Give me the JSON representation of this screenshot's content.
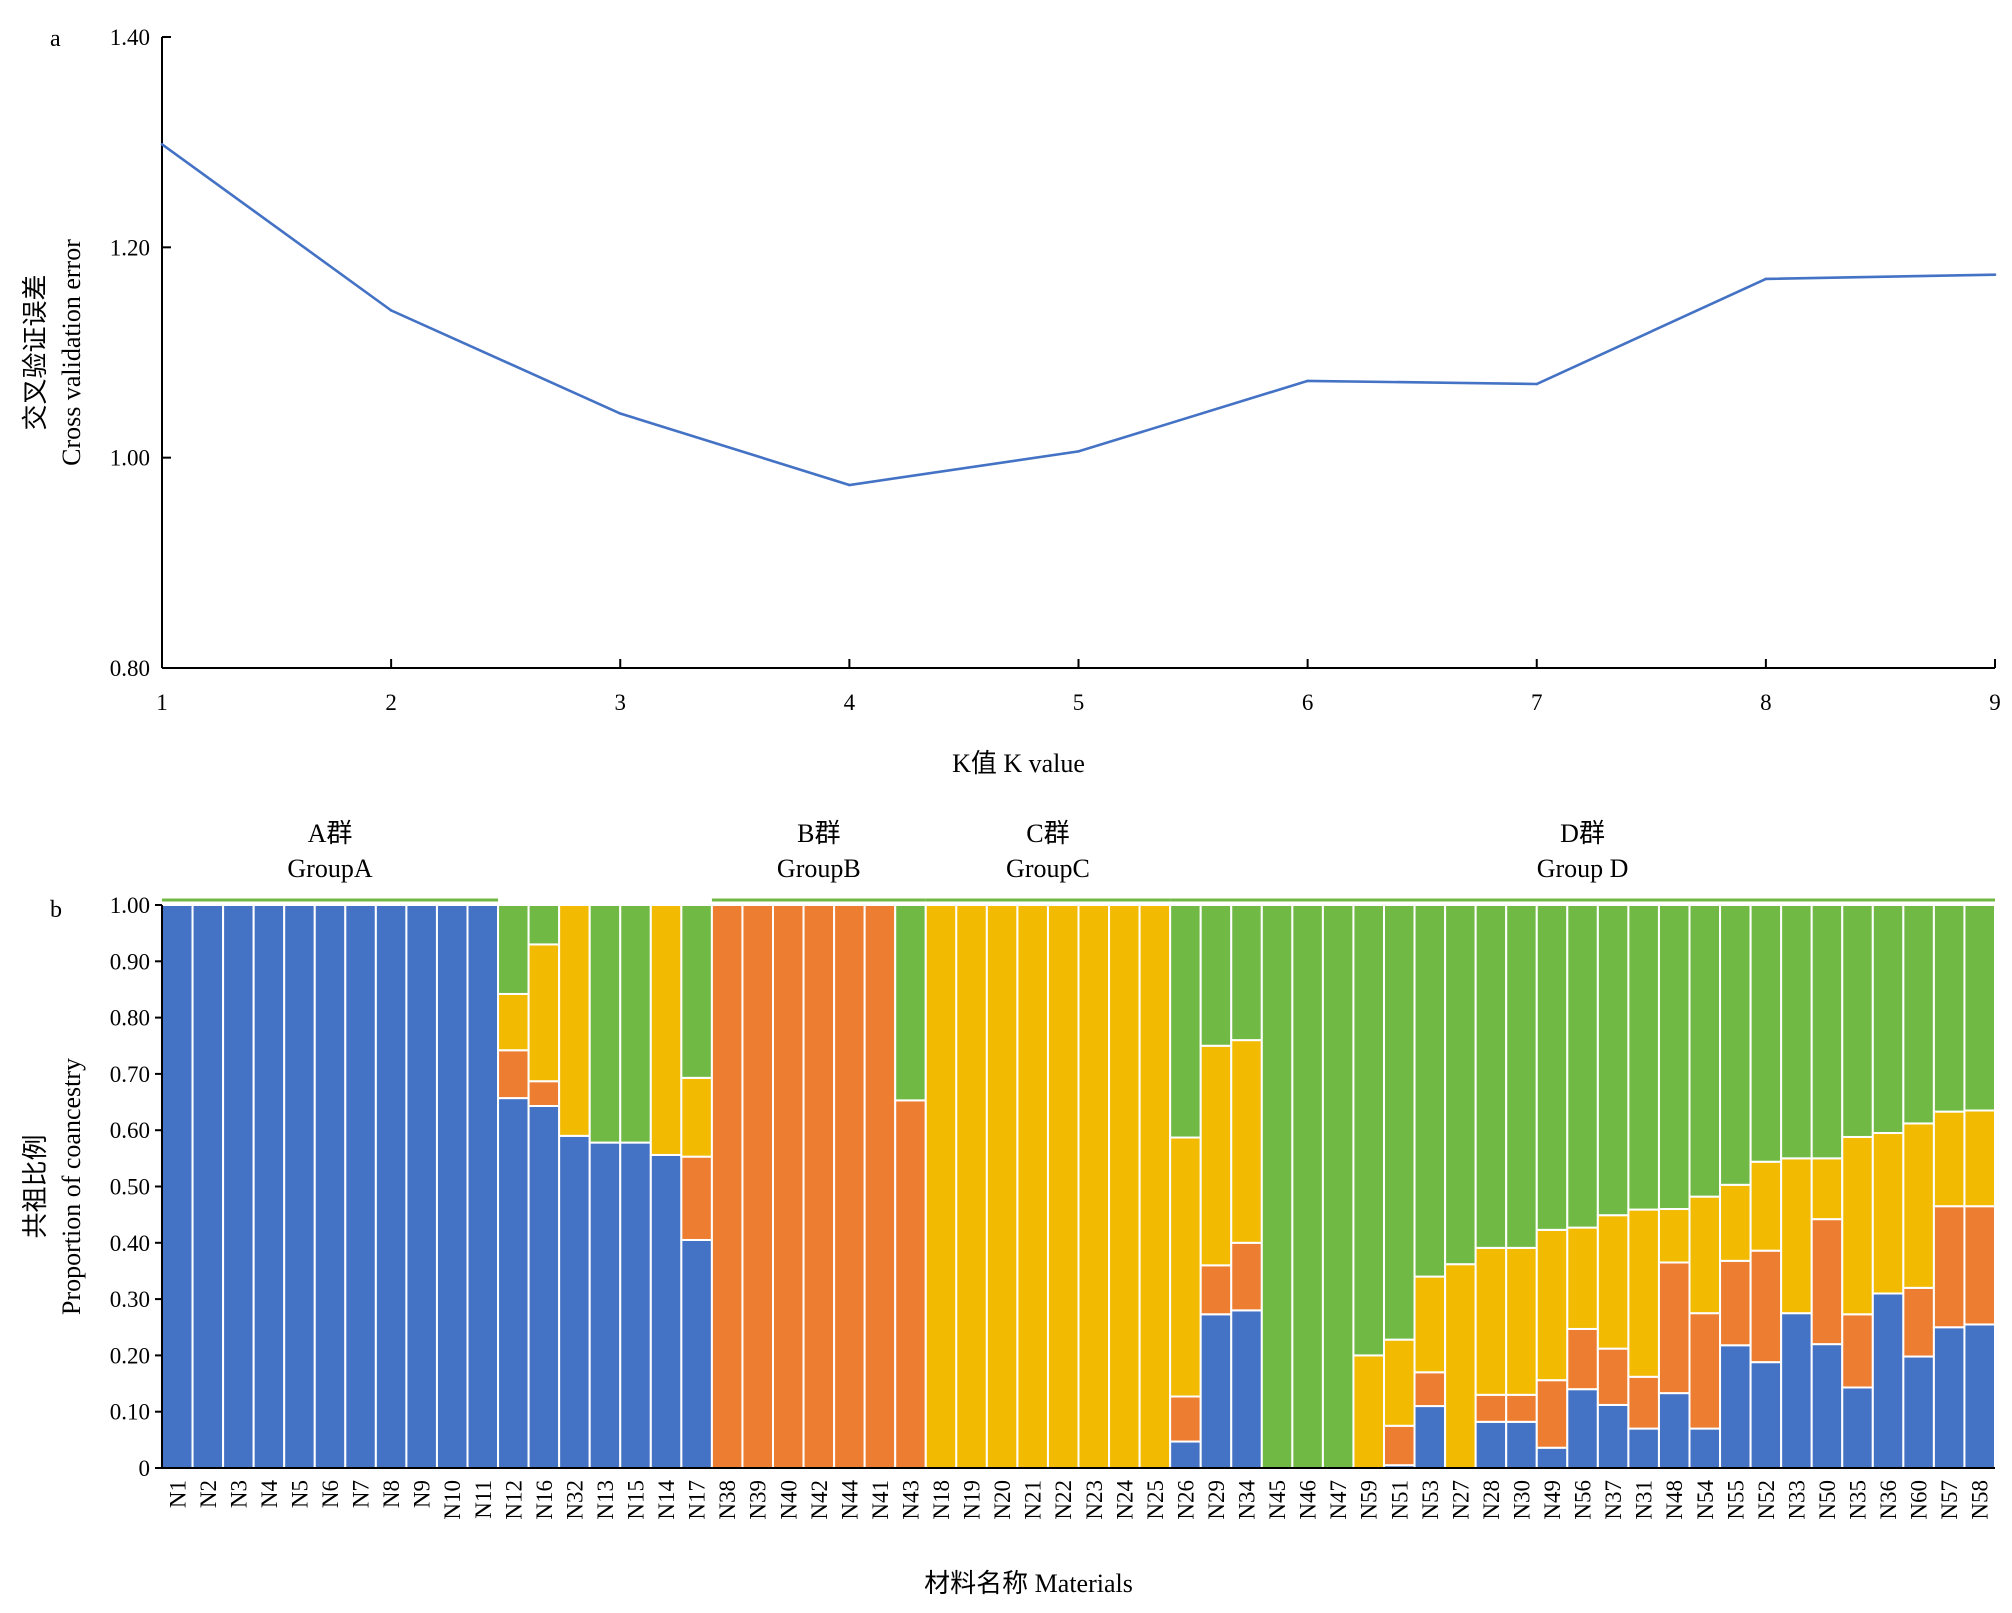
{
  "panels": {
    "a": "a",
    "b": "b"
  },
  "colors": {
    "line": "#4472C4",
    "axis": "#000000",
    "components": [
      "#4472C4",
      "#ED7D31",
      "#F2BA00",
      "#70B944"
    ]
  },
  "chart_data": [
    {
      "type": "line",
      "panel": "a",
      "xlabel": "K值 K value",
      "ylabel_cn": "交叉验证误差",
      "ylabel_en": "Cross validation error",
      "x": [
        1,
        2,
        3,
        4,
        5,
        6,
        7,
        8,
        9
      ],
      "y": [
        1.298,
        1.14,
        1.042,
        0.974,
        1.006,
        1.073,
        1.07,
        1.17,
        1.174
      ],
      "xlim": [
        1,
        9
      ],
      "ylim": [
        0.8,
        1.4
      ],
      "yticks": [
        "0.80",
        "1.00",
        "1.20",
        "1.40"
      ],
      "xticks": [
        "1",
        "2",
        "3",
        "4",
        "5",
        "6",
        "7",
        "8",
        "9"
      ]
    },
    {
      "type": "bar",
      "stacked": true,
      "panel": "b",
      "xlabel": "材料名称  Materials",
      "ylabel_cn": "共祖比例",
      "ylabel_en": "Proportion of coancestry",
      "ylim": [
        0,
        1
      ],
      "yticks": [
        "0",
        "0.10",
        "0.20",
        "0.30",
        "0.40",
        "0.50",
        "0.60",
        "0.70",
        "0.80",
        "0.90",
        "1.00"
      ],
      "groups": [
        {
          "cn": "A群",
          "en": "GroupA",
          "from": 0,
          "to": 10
        },
        {
          "cn": "B群",
          "en": "GroupB",
          "from": 18,
          "to": 24
        },
        {
          "cn": "C群",
          "en": "GroupC",
          "from": 25,
          "to": 32
        },
        {
          "cn": "D群",
          "en": "Group D",
          "from": 33,
          "to": 59
        }
      ],
      "categories": [
        "N1",
        "N2",
        "N3",
        "N4",
        "N5",
        "N6",
        "N7",
        "N8",
        "N9",
        "N10",
        "N11",
        "N12",
        "N16",
        "N32",
        "N13",
        "N15",
        "N14",
        "N17",
        "N38",
        "N39",
        "N40",
        "N42",
        "N44",
        "N41",
        "N43",
        "N18",
        "N19",
        "N20",
        "N21",
        "N22",
        "N23",
        "N24",
        "N25",
        "N26",
        "N29",
        "N34",
        "N45",
        "N46",
        "N47",
        "N59",
        "N51",
        "N53",
        "N27",
        "N28",
        "N30",
        "N49",
        "N56",
        "N37",
        "N31",
        "N48",
        "N54",
        "N55",
        "N52",
        "N33",
        "N50",
        "N35",
        "N36",
        "N60",
        "N57",
        "N58"
      ],
      "series": [
        {
          "values": [
            1,
            1,
            1,
            1,
            1,
            1,
            1,
            1,
            1,
            1,
            1,
            0.657,
            0.643,
            0.59,
            0.578,
            0.578,
            0.556,
            0.405,
            0,
            0,
            0,
            0,
            0,
            0,
            0,
            0,
            0,
            0,
            0,
            0,
            0,
            0,
            0,
            0.047,
            0.273,
            0.28,
            0,
            0,
            0,
            0,
            0.005,
            0.11,
            0,
            0.082,
            0.082,
            0.036,
            0.14,
            0.112,
            0.07,
            0.133,
            0.07,
            0.218,
            0.188,
            0.275,
            0.22,
            0.143,
            0.31,
            0.198,
            0.25,
            0.255
          ]
        },
        {
          "values": [
            0,
            0,
            0,
            0,
            0,
            0,
            0,
            0,
            0,
            0,
            0,
            0.085,
            0.044,
            0,
            0,
            0,
            0,
            0.148,
            1,
            1,
            1,
            1,
            1,
            1,
            0.653,
            0,
            0,
            0,
            0,
            0,
            0,
            0,
            0,
            0.08,
            0.087,
            0.12,
            0,
            0,
            0,
            0,
            0.07,
            0.06,
            0,
            0.048,
            0.048,
            0.12,
            0.107,
            0.1,
            0.092,
            0.232,
            0.205,
            0.15,
            0.198,
            0,
            0.222,
            0.13,
            0,
            0.122,
            0.215,
            0.21
          ]
        },
        {
          "values": [
            0,
            0,
            0,
            0,
            0,
            0,
            0,
            0,
            0,
            0,
            0,
            0.1,
            0.243,
            0.41,
            0,
            0,
            0.444,
            0.14,
            0,
            0,
            0,
            0,
            0,
            0,
            0,
            1,
            1,
            1,
            1,
            1,
            1,
            1,
            1,
            0.46,
            0.39,
            0.36,
            0,
            0,
            0,
            0.2,
            0.153,
            0.17,
            0.362,
            0.261,
            0.261,
            0.267,
            0.18,
            0.237,
            0.297,
            0.095,
            0.207,
            0.135,
            0.158,
            0.275,
            0.108,
            0.315,
            0.285,
            0.292,
            0.168,
            0.17
          ]
        },
        {
          "values": [
            0,
            0,
            0,
            0,
            0,
            0,
            0,
            0,
            0,
            0,
            0,
            0.158,
            0.07,
            0,
            0.422,
            0.422,
            0,
            0.307,
            0,
            0,
            0,
            0,
            0,
            0,
            0.347,
            0,
            0,
            0,
            0,
            0,
            0,
            0,
            0,
            0.413,
            0.25,
            0.24,
            1,
            1,
            1,
            0.8,
            0.772,
            0.66,
            0.638,
            0.609,
            0.609,
            0.577,
            0.573,
            0.551,
            0.541,
            0.54,
            0.518,
            0.497,
            0.456,
            0.45,
            0.45,
            0.412,
            0.405,
            0.388,
            0.367,
            0.365
          ]
        }
      ]
    }
  ]
}
